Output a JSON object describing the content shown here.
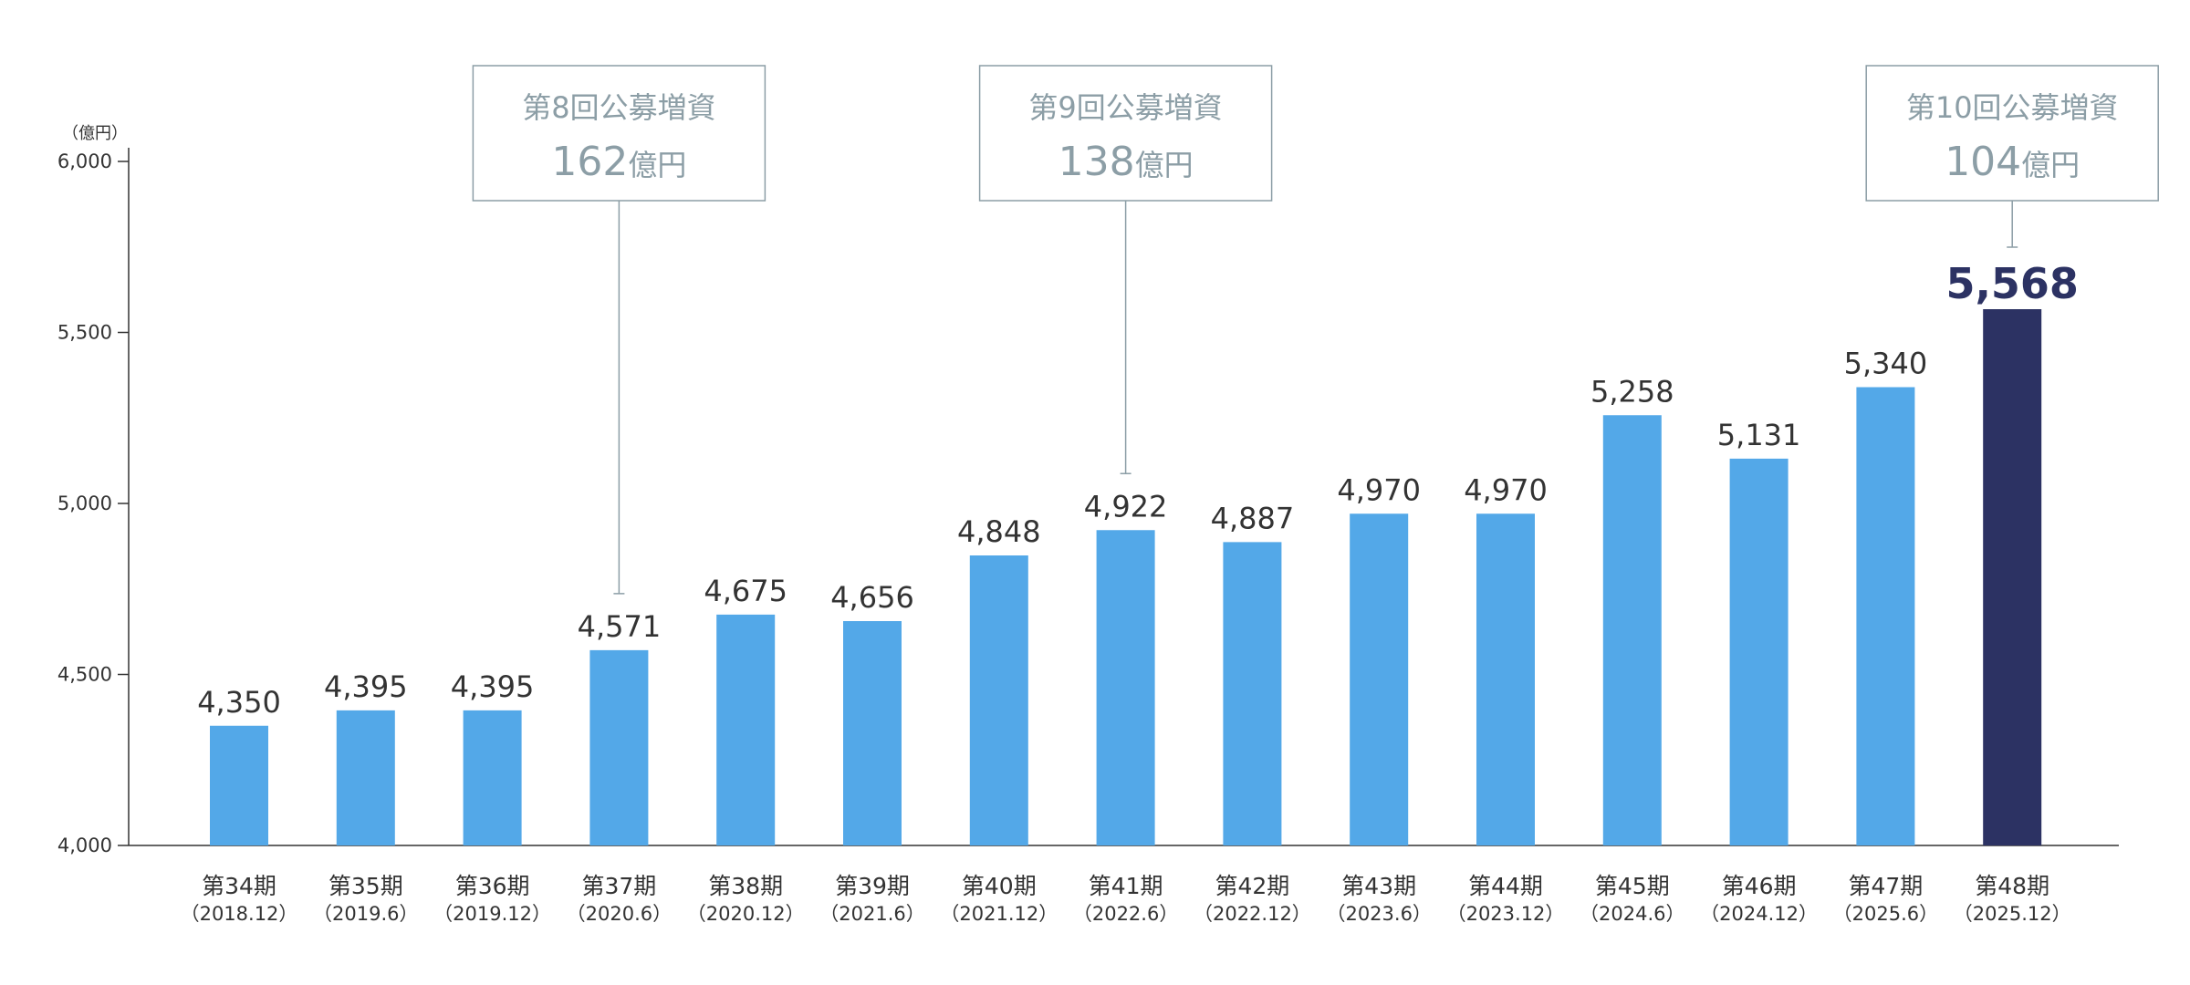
{
  "chart_data": {
    "type": "bar",
    "unit_label": "（億円）",
    "ylim": [
      4000,
      6000
    ],
    "yticks": [
      "4,000",
      "4,500",
      "5,000",
      "5,500",
      "6,000"
    ],
    "ytick_values": [
      4000,
      4500,
      5000,
      5500,
      6000
    ],
    "categories": [
      "第34期",
      "第35期",
      "第36期",
      "第37期",
      "第38期",
      "第39期",
      "第40期",
      "第41期",
      "第42期",
      "第43期",
      "第44期",
      "第45期",
      "第46期",
      "第47期",
      "第48期"
    ],
    "periods": [
      "（2018.12）",
      "（2019.6）",
      "（2019.12）",
      "（2020.6）",
      "（2020.12）",
      "（2021.6）",
      "（2021.12）",
      "（2022.6）",
      "（2022.12）",
      "（2023.6）",
      "（2023.12）",
      "（2024.6）",
      "（2024.12）",
      "（2025.6）",
      "（2025.12）"
    ],
    "values": [
      4350,
      4395,
      4395,
      4571,
      4675,
      4656,
      4848,
      4922,
      4887,
      4970,
      4970,
      5258,
      5131,
      5340,
      5568
    ],
    "value_labels": [
      "4,350",
      "4,395",
      "4,395",
      "4,571",
      "4,675",
      "4,656",
      "4,848",
      "4,922",
      "4,887",
      "4,970",
      "4,970",
      "5,258",
      "5,131",
      "5,340",
      "5,568"
    ],
    "highlight_index": 14,
    "colors": {
      "bar": "#53a8e8",
      "highlight": "#2c3263",
      "callout": "#8c9ea6",
      "axis": "#333333"
    },
    "grid": false,
    "annotations": [
      {
        "category_index": 3,
        "title": "第8回公募増資",
        "amount": "162",
        "unit": "億円"
      },
      {
        "category_index": 7,
        "title": "第9回公募増資",
        "amount": "138",
        "unit": "億円"
      },
      {
        "category_index": 14,
        "title": "第10回公募増資",
        "amount": "104",
        "unit": "億円"
      }
    ]
  }
}
